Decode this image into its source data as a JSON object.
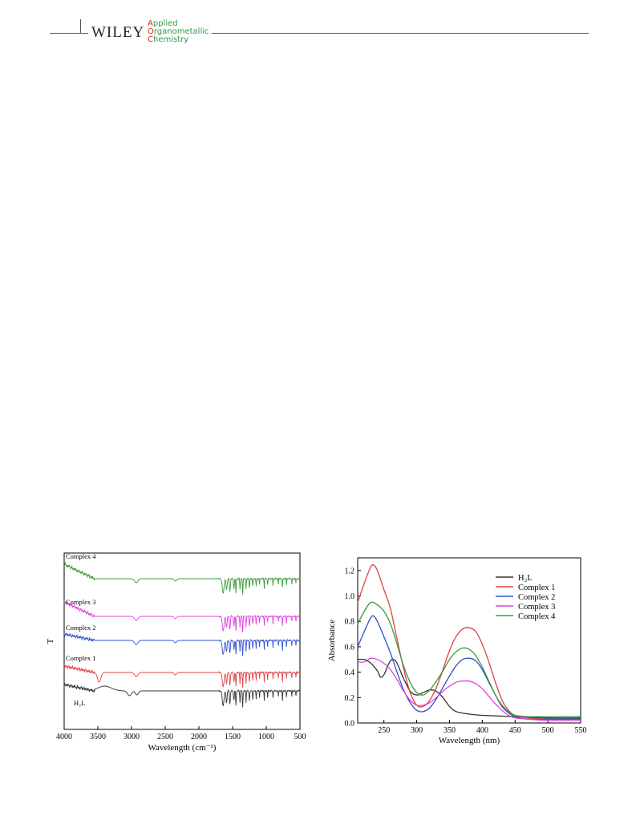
{
  "header": {
    "publisher": "WILEY",
    "journal_line1": "Applied",
    "journal_line2": "Organometallic",
    "journal_line3": "Chemistry"
  },
  "chart_data": [
    {
      "type": "line",
      "title": "",
      "xlabel": "Wavelength (cm⁻¹)",
      "ylabel": "T",
      "x_reversed": true,
      "xlim": [
        4000,
        500
      ],
      "x_ticks": [
        4000,
        3500,
        3000,
        2500,
        2000,
        1500,
        1000,
        500
      ],
      "y_ticks_shown": false,
      "grid": false,
      "legend": "inline labels",
      "series": [
        {
          "name": "Complex 4",
          "color": "#3a9a3a",
          "offset": 4
        },
        {
          "name": "Complex 3",
          "color": "#e040e0",
          "offset": 3
        },
        {
          "name": "Complex 2",
          "color": "#3050d0",
          "offset": 2
        },
        {
          "name": "Complex 1",
          "color": "#e04040",
          "offset": 1
        },
        {
          "name": "H₂L",
          "color": "#333333",
          "offset": 0
        }
      ]
    },
    {
      "type": "line",
      "title": "",
      "xlabel": "Wavelength (nm)",
      "ylabel": "Absorbance",
      "xlim": [
        210,
        550
      ],
      "ylim": [
        0.0,
        1.3
      ],
      "x_ticks": [
        250,
        300,
        350,
        400,
        450,
        500,
        550
      ],
      "y_ticks": [
        0.0,
        0.2,
        0.4,
        0.6,
        0.8,
        1.0,
        1.2
      ],
      "grid": false,
      "legend": "top-right",
      "series": [
        {
          "name": "H₂L",
          "color": "#333333",
          "x": [
            210,
            220,
            230,
            240,
            245,
            250,
            255,
            260,
            265,
            270,
            280,
            290,
            300,
            310,
            320,
            330,
            340,
            350,
            360,
            380,
            400,
            450,
            500,
            550
          ],
          "y": [
            0.5,
            0.5,
            0.47,
            0.41,
            0.36,
            0.38,
            0.44,
            0.49,
            0.5,
            0.47,
            0.35,
            0.25,
            0.22,
            0.24,
            0.26,
            0.25,
            0.2,
            0.13,
            0.09,
            0.07,
            0.06,
            0.05,
            0.04,
            0.04
          ]
        },
        {
          "name": "Complex 1",
          "color": "#e04040",
          "x": [
            210,
            220,
            230,
            235,
            240,
            250,
            260,
            270,
            280,
            290,
            300,
            310,
            320,
            330,
            340,
            350,
            360,
            370,
            380,
            390,
            400,
            410,
            420,
            430,
            440,
            450,
            470,
            500,
            550
          ],
          "y": [
            0.95,
            1.1,
            1.23,
            1.24,
            1.2,
            1.05,
            0.9,
            0.66,
            0.43,
            0.24,
            0.14,
            0.13,
            0.18,
            0.28,
            0.42,
            0.57,
            0.68,
            0.74,
            0.75,
            0.72,
            0.62,
            0.48,
            0.32,
            0.18,
            0.1,
            0.06,
            0.04,
            0.03,
            0.03
          ]
        },
        {
          "name": "Complex 2",
          "color": "#3050d0",
          "x": [
            210,
            220,
            230,
            235,
            240,
            250,
            260,
            270,
            280,
            290,
            300,
            310,
            320,
            330,
            340,
            350,
            360,
            370,
            380,
            390,
            400,
            410,
            420,
            430,
            440,
            450,
            470,
            500,
            550
          ],
          "y": [
            0.6,
            0.72,
            0.83,
            0.84,
            0.8,
            0.68,
            0.55,
            0.4,
            0.26,
            0.16,
            0.1,
            0.09,
            0.12,
            0.19,
            0.28,
            0.37,
            0.45,
            0.5,
            0.51,
            0.49,
            0.42,
            0.32,
            0.22,
            0.13,
            0.08,
            0.05,
            0.03,
            0.03,
            0.03
          ]
        },
        {
          "name": "Complex 3",
          "color": "#e040e0",
          "x": [
            210,
            220,
            230,
            240,
            250,
            260,
            270,
            280,
            290,
            300,
            310,
            320,
            330,
            340,
            350,
            360,
            370,
            380,
            390,
            400,
            410,
            420,
            430,
            440,
            450,
            470,
            500,
            550
          ],
          "y": [
            0.48,
            0.48,
            0.51,
            0.5,
            0.47,
            0.42,
            0.34,
            0.25,
            0.18,
            0.14,
            0.14,
            0.16,
            0.2,
            0.25,
            0.29,
            0.32,
            0.33,
            0.33,
            0.31,
            0.27,
            0.21,
            0.15,
            0.1,
            0.06,
            0.04,
            0.03,
            0.02,
            0.02
          ]
        },
        {
          "name": "Complex 4",
          "color": "#3a9a3a",
          "x": [
            210,
            220,
            230,
            240,
            250,
            260,
            270,
            280,
            290,
            300,
            310,
            320,
            330,
            340,
            350,
            360,
            370,
            380,
            390,
            400,
            410,
            420,
            430,
            440,
            450,
            470,
            500,
            550
          ],
          "y": [
            0.78,
            0.88,
            0.95,
            0.93,
            0.88,
            0.78,
            0.62,
            0.45,
            0.32,
            0.24,
            0.22,
            0.26,
            0.33,
            0.41,
            0.5,
            0.56,
            0.59,
            0.58,
            0.53,
            0.44,
            0.33,
            0.22,
            0.14,
            0.09,
            0.06,
            0.05,
            0.05,
            0.05
          ]
        }
      ]
    }
  ]
}
